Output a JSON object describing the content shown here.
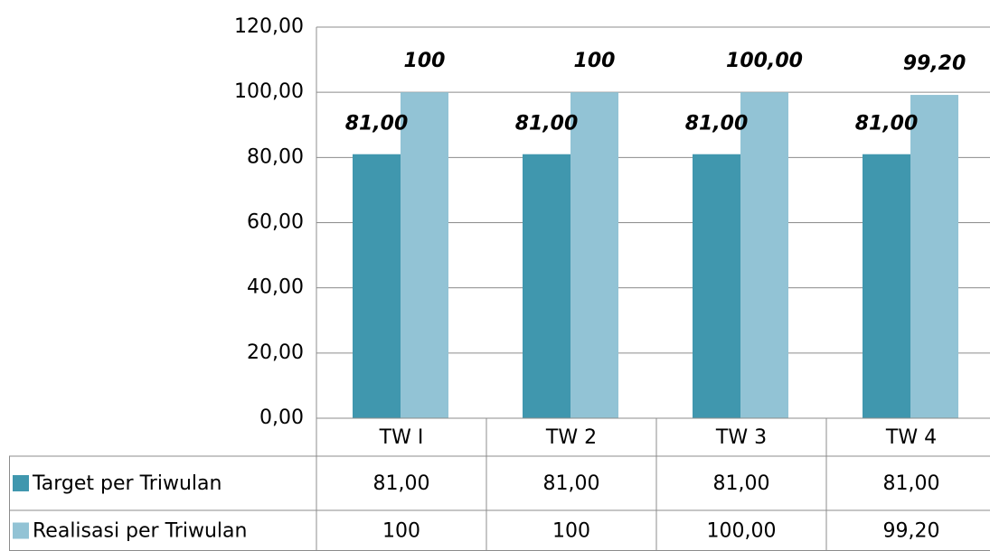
{
  "chart_data": {
    "type": "bar",
    "categories": [
      "TW I",
      "TW 2",
      "TW 3",
      "TW 4"
    ],
    "series": [
      {
        "name": "Target per Triwulan",
        "color": "#4097ae",
        "label_color": "#31687a",
        "values": [
          81,
          81,
          81,
          81
        ],
        "value_labels": [
          "81,00",
          "81,00",
          "81,00",
          "81,00"
        ]
      },
      {
        "name": "Realisasi per Triwulan",
        "color": "#92c3d5",
        "label_color": "#000000",
        "values": [
          100,
          100,
          100,
          99.2
        ],
        "value_labels": [
          "100",
          "100",
          "100,00",
          "99,20"
        ]
      }
    ],
    "ylim": [
      0,
      120
    ],
    "yticks": [
      {
        "value": 0,
        "label": "0,00"
      },
      {
        "value": 20,
        "label": "20,00"
      },
      {
        "value": 40,
        "label": "40,00"
      },
      {
        "value": 60,
        "label": "60,00"
      },
      {
        "value": 80,
        "label": "80,00"
      },
      {
        "value": 100,
        "label": "100,00"
      },
      {
        "value": 120,
        "label": "120,00"
      }
    ],
    "grid": true,
    "data_table": true
  }
}
